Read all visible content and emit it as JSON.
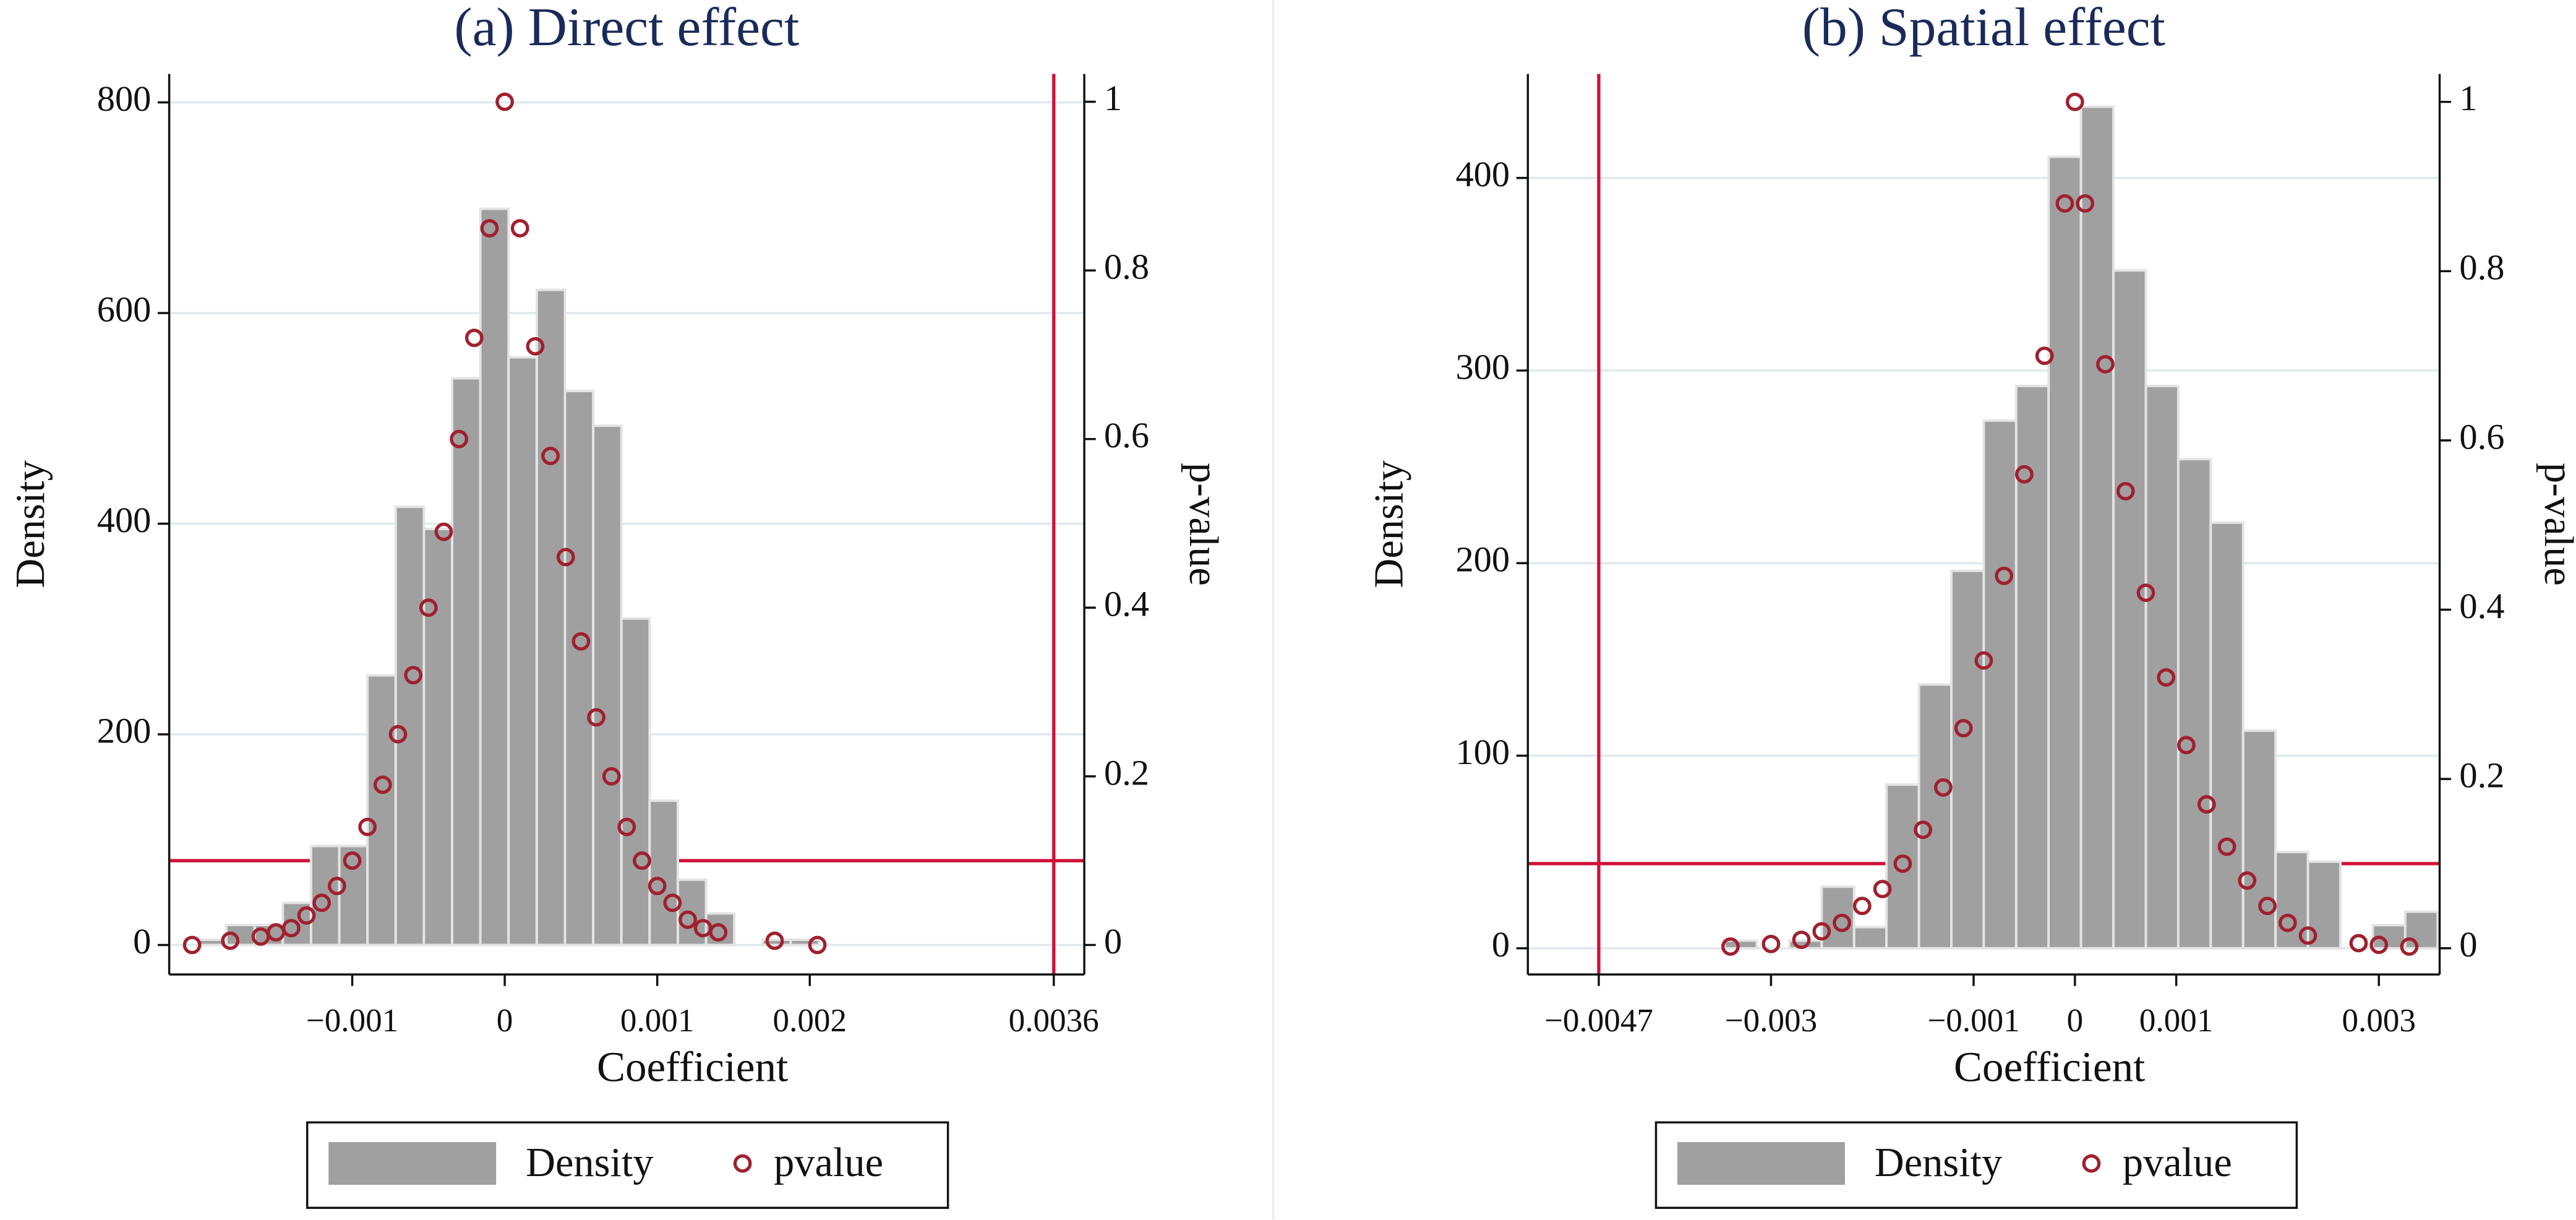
{
  "chart_data": [
    {
      "type": "histogram",
      "title": "(a) Direct effect",
      "xlabel": "Coefficient",
      "ylabel": "Density",
      "y2label": "p-value",
      "xlim": [
        -0.0022,
        0.0038
      ],
      "ylim": [
        -28,
        827
      ],
      "y2lim": [
        -0.035,
        1.033
      ],
      "xticks": [
        {
          "value": -0.001,
          "label": "−0.001"
        },
        0,
        0.001,
        0.002,
        0.0036
      ],
      "yticks": [
        0,
        200,
        400,
        600,
        800
      ],
      "y2ticks": [
        0,
        0.2,
        0.4,
        0.6,
        0.8,
        1
      ],
      "grid": true,
      "reference_lines": {
        "x": 0.0036,
        "y2": 0.1,
        "color": "#d0103a"
      },
      "series": [
        {
          "name": "Density",
          "type": "histogram",
          "color": "#a0a0a0",
          "bins": [
            -0.00201,
            -0.001825,
            -0.00164,
            -0.001455,
            -0.00127,
            -0.001085,
            -0.0009,
            -0.000715,
            -0.00053,
            -0.000345,
            -0.00016,
            2.5e-05,
            0.00021,
            0.000395,
            0.00058,
            0.000765,
            0.00095,
            0.001135,
            0.00132,
            0.001505,
            0.00169,
            0.001875,
            0.00206
          ],
          "values": [
            5,
            19,
            19,
            40,
            94,
            94,
            256,
            416,
            395,
            538,
            699,
            558,
            622,
            526,
            493,
            310,
            137,
            62,
            30,
            0,
            5,
            5
          ]
        },
        {
          "name": "pvalue",
          "type": "scatter",
          "axis": "y2",
          "color": "#a0202f",
          "x": [
            -0.00205,
            -0.0018,
            -0.0016,
            -0.0015,
            -0.0014,
            -0.0013,
            -0.0012,
            -0.0011,
            -0.001,
            -0.0009,
            -0.0008,
            -0.0007,
            -0.0006,
            -0.0005,
            -0.0004,
            -0.0003,
            -0.0002,
            -0.0001,
            0,
            0.0001,
            0.0002,
            0.0003,
            0.0004,
            0.0005,
            0.0006,
            0.0007,
            0.0008,
            0.0009,
            0.001,
            0.0011,
            0.0012,
            0.0013,
            0.0014,
            0.00177,
            0.00205
          ],
          "values": [
            0,
            0.005,
            0.01,
            0.015,
            0.02,
            0.035,
            0.05,
            0.07,
            0.1,
            0.14,
            0.19,
            0.25,
            0.32,
            0.4,
            0.49,
            0.6,
            0.72,
            0.85,
            1,
            0.85,
            0.71,
            0.58,
            0.46,
            0.36,
            0.27,
            0.2,
            0.14,
            0.1,
            0.07,
            0.05,
            0.03,
            0.02,
            0.015,
            0.005,
            0
          ]
        }
      ]
    },
    {
      "type": "histogram",
      "title": "(b) Spatial effect",
      "xlabel": "Coefficient",
      "ylabel": "Density",
      "y2label": "p-value",
      "xlim": [
        -0.0054,
        0.0036
      ],
      "ylim": [
        -13.6,
        454
      ],
      "y2lim": [
        -0.031,
        1.033
      ],
      "xticks": [
        {
          "value": -0.0047,
          "label": "−0.0047"
        },
        {
          "value": -0.003,
          "label": "−0.003"
        },
        {
          "value": -0.001,
          "label": "−0.001"
        },
        0,
        0.001,
        0.003
      ],
      "yticks": [
        0,
        100,
        200,
        300,
        400
      ],
      "y2ticks": [
        0,
        0.2,
        0.4,
        0.6,
        0.8,
        1
      ],
      "grid": true,
      "reference_lines": {
        "x": -0.0047,
        "y2": 0.1,
        "color": "#d0103a"
      },
      "series": [
        {
          "name": "Density",
          "type": "histogram",
          "color": "#a0a0a0",
          "bins": [
            -0.00346,
            -0.00314,
            -0.00282,
            -0.0025,
            -0.00218,
            -0.00186,
            -0.00154,
            -0.00122,
            -0.0009,
            -0.00058,
            -0.00026,
            6e-05,
            0.00038,
            0.0007,
            0.00102,
            0.00134,
            0.00166,
            0.00198,
            0.0023,
            0.00262,
            0.00294,
            0.00326,
            0.00358
          ],
          "values": [
            4,
            0,
            4,
            32,
            11,
            85,
            137,
            196,
            274,
            292,
            411,
            437,
            352,
            292,
            254,
            221,
            113,
            50,
            45,
            0,
            12,
            19
          ]
        },
        {
          "name": "pvalue",
          "type": "scatter",
          "axis": "y2",
          "color": "#a0202f",
          "x": [
            -0.0034,
            -0.003,
            -0.0027,
            -0.0025,
            -0.0023,
            -0.0021,
            -0.0019,
            -0.0017,
            -0.0015,
            -0.0013,
            -0.0011,
            -0.0009,
            -0.0007,
            -0.0005,
            -0.0003,
            -0.0001,
            0,
            0.0001,
            0.0003,
            0.0005,
            0.0007,
            0.0009,
            0.0011,
            0.0013,
            0.0015,
            0.0017,
            0.0019,
            0.0021,
            0.0023,
            0.0028,
            0.003,
            0.0033
          ],
          "values": [
            0.002,
            0.005,
            0.01,
            0.02,
            0.03,
            0.05,
            0.07,
            0.1,
            0.14,
            0.19,
            0.26,
            0.34,
            0.44,
            0.56,
            0.7,
            0.88,
            1,
            0.88,
            0.69,
            0.54,
            0.42,
            0.32,
            0.24,
            0.17,
            0.12,
            0.08,
            0.05,
            0.03,
            0.015,
            0.006,
            0.004,
            0.002
          ]
        }
      ]
    }
  ]
}
